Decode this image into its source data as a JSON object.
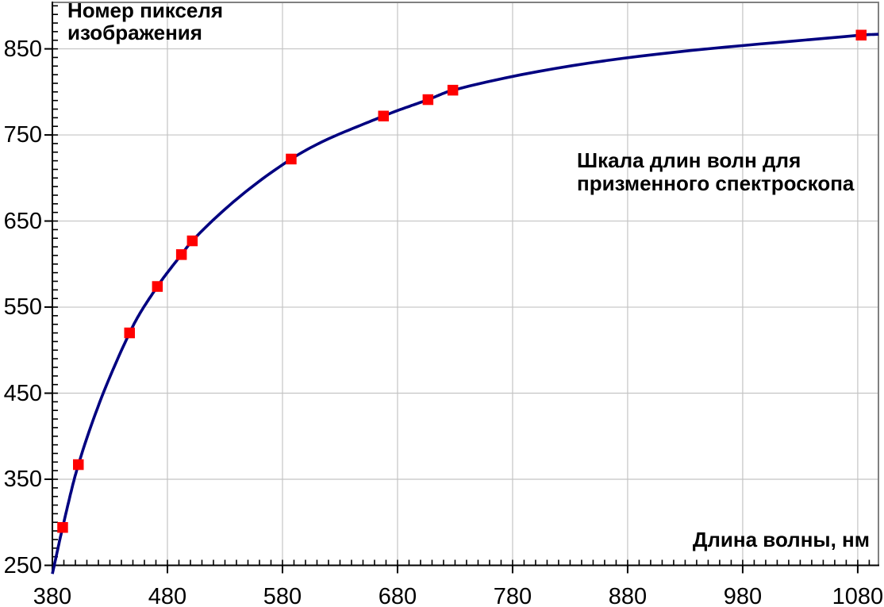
{
  "chart_data": {
    "type": "scatter",
    "title": "Шкала длин волн для призменного спектроскопа",
    "title_lines": [
      "Шкала длин волн для",
      "призменного спектроскопа"
    ],
    "y_axis_title": "Номер пикселя изображения",
    "y_axis_title_lines": [
      "Номер пикселя",
      "изображения"
    ],
    "x_axis_title": "Длина волны, нм",
    "x": [
      388.9,
      402.6,
      447.1,
      471.3,
      492.2,
      501.6,
      587.6,
      667.8,
      706.5,
      728.1,
      1083.0
    ],
    "y": [
      294,
      367,
      520,
      574,
      611,
      627,
      722,
      772,
      791,
      802,
      866
    ],
    "curve_endpoints": {
      "start": [
        380,
        240
      ],
      "end": [
        1098,
        867
      ]
    },
    "xlim": [
      380,
      1098
    ],
    "ylim": [
      250,
      904
    ],
    "x_major_ticks": [
      380,
      480,
      580,
      680,
      780,
      880,
      980,
      1080
    ],
    "y_major_ticks": [
      250,
      350,
      450,
      550,
      650,
      750,
      850
    ],
    "x_minor_ticks": {
      "from": 390,
      "to": 1090,
      "step": 10
    },
    "y_minor_ticks": {
      "from": 260,
      "to": 900,
      "step": 10
    },
    "grid": {
      "vertical": [
        480,
        580,
        680,
        780,
        880,
        980,
        1080
      ],
      "horizontal": [
        350,
        450,
        550,
        650,
        750,
        850
      ]
    },
    "legend": null,
    "colors": {
      "line": "#000080",
      "marker": "#ff0000",
      "grid": "#c4c4c4",
      "frame": "#808080",
      "axis": "#000000",
      "text": "#000000",
      "background": "#ffffff"
    },
    "marker": {
      "shape": "square",
      "size": 13.5
    },
    "line_width": 3.6
  }
}
